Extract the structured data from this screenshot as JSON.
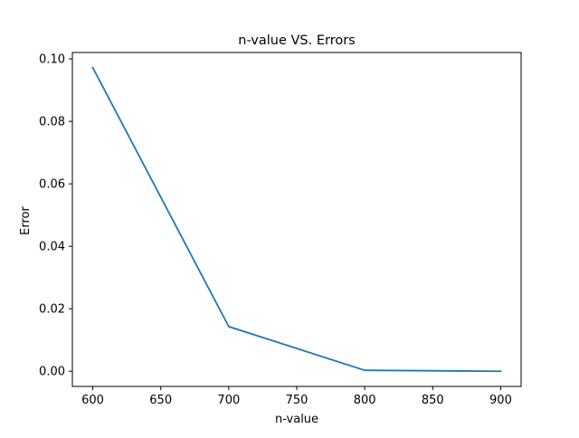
{
  "chart_data": {
    "type": "line",
    "title": "n-value VS. Errors",
    "xlabel": "n-value",
    "ylabel": "Error",
    "x": [
      600,
      700,
      800,
      900
    ],
    "series": [
      {
        "values": [
          0.0972,
          0.0143,
          0.0003,
          0.0
        ]
      }
    ],
    "xlim": [
      585,
      915
    ],
    "ylim": [
      -0.00486,
      0.10206
    ],
    "xticks": [
      600,
      650,
      700,
      750,
      800,
      850,
      900
    ],
    "xtick_labels": [
      "600",
      "650",
      "700",
      "750",
      "800",
      "850",
      "900"
    ],
    "yticks": [
      0.0,
      0.02,
      0.04,
      0.06,
      0.08,
      0.1
    ],
    "ytick_labels": [
      "0.00",
      "0.02",
      "0.04",
      "0.06",
      "0.08",
      "0.10"
    ],
    "grid": false,
    "line_color": "#1f77b4"
  }
}
